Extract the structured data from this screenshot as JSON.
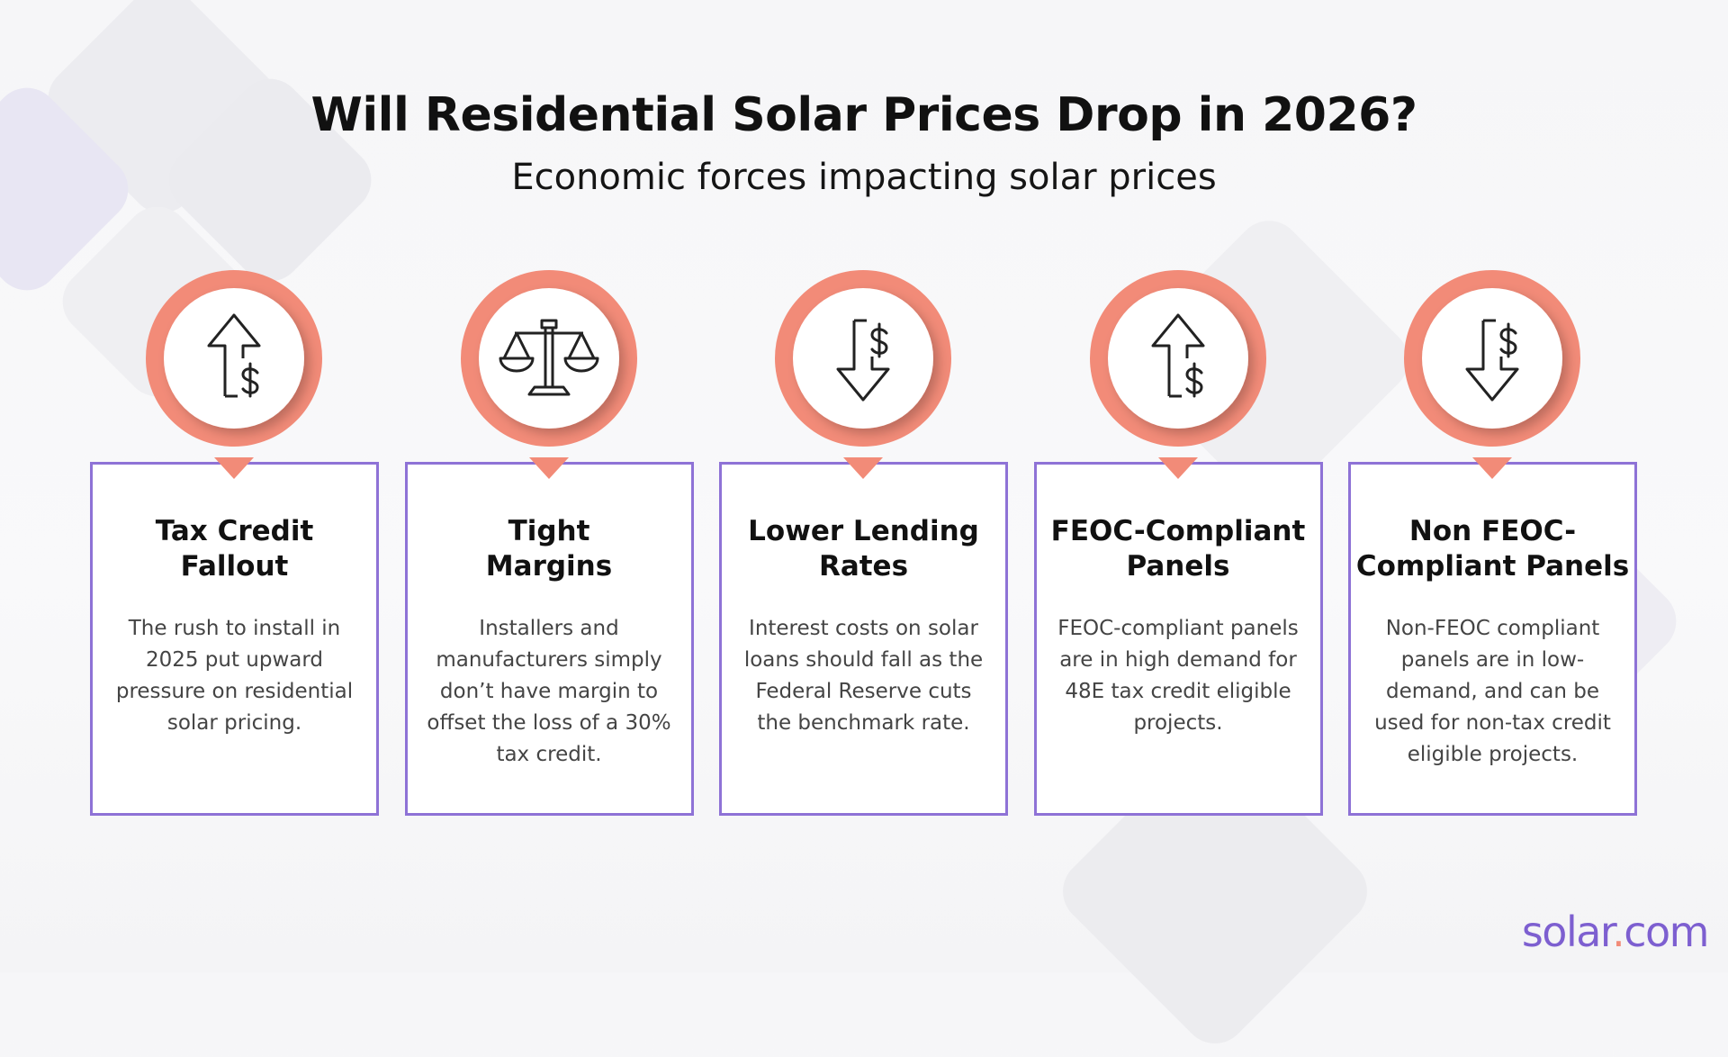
{
  "header": {
    "title": "Will Residential Solar Prices Drop in 2026?",
    "subtitle": "Economic forces impacting solar prices"
  },
  "cards": [
    {
      "title_lines": [
        "Tax Credit",
        "Fallout"
      ],
      "body": "The rush to install in 2025 put upward pressure on residential solar pricing."
    },
    {
      "title_lines": [
        "Tight",
        "Margins"
      ],
      "body": "Installers and manufacturers simply don’t have margin to offset the loss of a 30% tax credit."
    },
    {
      "title_lines": [
        "Lower Lending",
        "Rates"
      ],
      "body": "Interest costs on solar loans should fall as the Federal Reserve cuts the benchmark rate."
    },
    {
      "title_lines": [
        "FEOC-Compliant",
        "Panels"
      ],
      "body": "FEOC-compliant panels are in high demand for 48E tax credit eligible projects."
    },
    {
      "title_lines": [
        "Non FEOC-",
        "Compliant Panels"
      ],
      "body": "Non-FEOC compliant panels are in low-demand, and can be used for non-tax credit eligible projects."
    }
  ],
  "logo": [
    "solar",
    ".",
    "com"
  ]
}
